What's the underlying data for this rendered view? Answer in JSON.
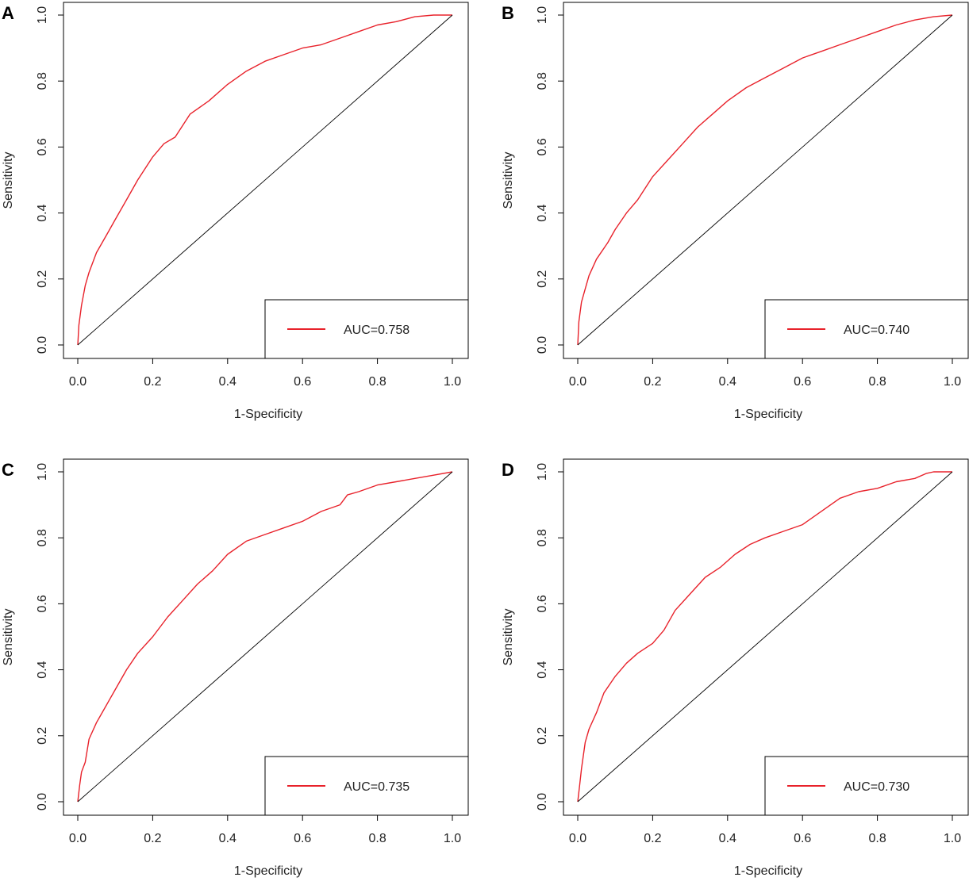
{
  "colors": {
    "roc": "#e8222b",
    "diagonal": "#000000",
    "frame": "#000000"
  },
  "chart_data": [
    {
      "type": "line",
      "panel_label": "A",
      "xlabel": "1-Specificity",
      "ylabel": "Sensitivity",
      "xlim": [
        0,
        1
      ],
      "ylim": [
        0,
        1
      ],
      "xticks": [
        "0.0",
        "0.2",
        "0.4",
        "0.6",
        "0.8",
        "1.0"
      ],
      "yticks": [
        "0.0",
        "0.2",
        "0.4",
        "0.6",
        "0.8",
        "1.0"
      ],
      "legend": {
        "label": "AUC=0.758",
        "placement": "bottom-right"
      },
      "series": [
        {
          "name": "ROC",
          "x": [
            0,
            0.003,
            0.01,
            0.02,
            0.03,
            0.05,
            0.08,
            0.1,
            0.13,
            0.16,
            0.2,
            0.23,
            0.26,
            0.3,
            0.35,
            0.4,
            0.45,
            0.5,
            0.55,
            0.6,
            0.65,
            0.7,
            0.75,
            0.8,
            0.85,
            0.9,
            0.95,
            1
          ],
          "y": [
            0,
            0.06,
            0.12,
            0.18,
            0.22,
            0.28,
            0.34,
            0.38,
            0.44,
            0.5,
            0.57,
            0.61,
            0.63,
            0.7,
            0.74,
            0.79,
            0.83,
            0.86,
            0.88,
            0.9,
            0.91,
            0.93,
            0.95,
            0.97,
            0.98,
            0.995,
            1,
            1
          ]
        },
        {
          "name": "reference",
          "x": [
            0,
            1
          ],
          "y": [
            0,
            1
          ]
        }
      ]
    },
    {
      "type": "line",
      "panel_label": "B",
      "xlabel": "1-Specificity",
      "ylabel": "Sensitivity",
      "xlim": [
        0,
        1
      ],
      "ylim": [
        0,
        1
      ],
      "xticks": [
        "0.0",
        "0.2",
        "0.4",
        "0.6",
        "0.8",
        "1.0"
      ],
      "yticks": [
        "0.0",
        "0.2",
        "0.4",
        "0.6",
        "0.8",
        "1.0"
      ],
      "legend": {
        "label": "AUC=0.740",
        "placement": "bottom-right"
      },
      "series": [
        {
          "name": "ROC",
          "x": [
            0,
            0.003,
            0.01,
            0.02,
            0.03,
            0.05,
            0.08,
            0.1,
            0.13,
            0.16,
            0.2,
            0.24,
            0.28,
            0.32,
            0.36,
            0.4,
            0.45,
            0.5,
            0.55,
            0.6,
            0.65,
            0.7,
            0.75,
            0.8,
            0.85,
            0.9,
            0.95,
            1
          ],
          "y": [
            0,
            0.07,
            0.13,
            0.17,
            0.21,
            0.26,
            0.31,
            0.35,
            0.4,
            0.44,
            0.51,
            0.56,
            0.61,
            0.66,
            0.7,
            0.74,
            0.78,
            0.81,
            0.84,
            0.87,
            0.89,
            0.91,
            0.93,
            0.95,
            0.97,
            0.985,
            0.995,
            1
          ]
        },
        {
          "name": "reference",
          "x": [
            0,
            1
          ],
          "y": [
            0,
            1
          ]
        }
      ]
    },
    {
      "type": "line",
      "panel_label": "C",
      "xlabel": "1-Specificity",
      "ylabel": "Sensitivity",
      "xlim": [
        0,
        1
      ],
      "ylim": [
        0,
        1
      ],
      "xticks": [
        "0.0",
        "0.2",
        "0.4",
        "0.6",
        "0.8",
        "1.0"
      ],
      "yticks": [
        "0.0",
        "0.2",
        "0.4",
        "0.6",
        "0.8",
        "1.0"
      ],
      "legend": {
        "label": "AUC=0.735",
        "placement": "bottom-right"
      },
      "series": [
        {
          "name": "ROC",
          "x": [
            0,
            0.005,
            0.01,
            0.02,
            0.03,
            0.05,
            0.08,
            0.1,
            0.13,
            0.16,
            0.2,
            0.24,
            0.28,
            0.32,
            0.36,
            0.4,
            0.45,
            0.5,
            0.55,
            0.6,
            0.65,
            0.7,
            0.72,
            0.75,
            0.8,
            0.85,
            0.9,
            0.95,
            1
          ],
          "y": [
            0,
            0.05,
            0.09,
            0.12,
            0.19,
            0.24,
            0.3,
            0.34,
            0.4,
            0.45,
            0.5,
            0.56,
            0.61,
            0.66,
            0.7,
            0.75,
            0.79,
            0.81,
            0.83,
            0.85,
            0.88,
            0.9,
            0.93,
            0.94,
            0.96,
            0.97,
            0.98,
            0.99,
            1
          ]
        },
        {
          "name": "reference",
          "x": [
            0,
            1
          ],
          "y": [
            0,
            1
          ]
        }
      ]
    },
    {
      "type": "line",
      "panel_label": "D",
      "xlabel": "1-Specificity",
      "ylabel": "Sensitivity",
      "xlim": [
        0,
        1
      ],
      "ylim": [
        0,
        1
      ],
      "xticks": [
        "0.0",
        "0.2",
        "0.4",
        "0.6",
        "0.8",
        "1.0"
      ],
      "yticks": [
        "0.0",
        "0.2",
        "0.4",
        "0.6",
        "0.8",
        "1.0"
      ],
      "legend": {
        "label": "AUC=0.730",
        "placement": "bottom-right"
      },
      "series": [
        {
          "name": "ROC",
          "x": [
            0,
            0.005,
            0.01,
            0.02,
            0.03,
            0.05,
            0.07,
            0.1,
            0.13,
            0.16,
            0.2,
            0.23,
            0.26,
            0.3,
            0.34,
            0.38,
            0.42,
            0.46,
            0.5,
            0.55,
            0.6,
            0.65,
            0.7,
            0.75,
            0.8,
            0.85,
            0.9,
            0.93,
            0.95,
            1
          ],
          "y": [
            0,
            0.05,
            0.1,
            0.18,
            0.22,
            0.27,
            0.33,
            0.38,
            0.42,
            0.45,
            0.48,
            0.52,
            0.58,
            0.63,
            0.68,
            0.71,
            0.75,
            0.78,
            0.8,
            0.82,
            0.84,
            0.88,
            0.92,
            0.94,
            0.95,
            0.97,
            0.98,
            0.995,
            1,
            1
          ]
        },
        {
          "name": "reference",
          "x": [
            0,
            1
          ],
          "y": [
            0,
            1
          ]
        }
      ]
    }
  ]
}
